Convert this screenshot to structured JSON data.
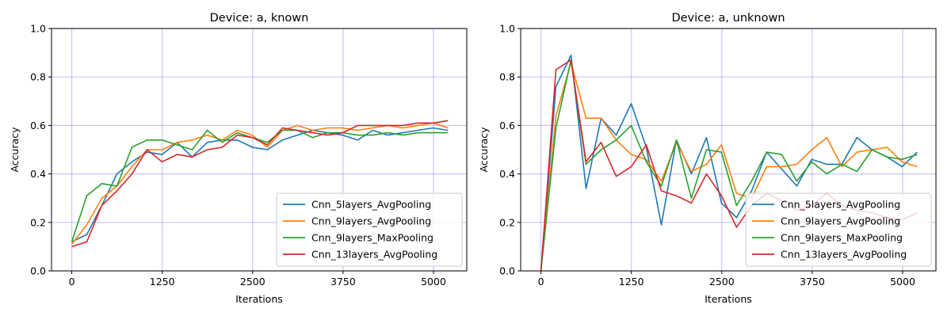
{
  "chart_data": [
    {
      "type": "line",
      "title": "Device: a, known",
      "xlabel": "Iterations",
      "ylabel": "Accuracy",
      "xlim": [
        -280,
        5460
      ],
      "ylim": [
        0.0,
        1.0
      ],
      "xticks": [
        0,
        1250,
        2500,
        3750,
        5000
      ],
      "xtick_labels": [
        "0",
        "1250",
        "2500",
        "3750",
        "5000"
      ],
      "yticks": [
        0.0,
        0.2,
        0.4,
        0.6,
        0.8,
        1.0
      ],
      "ytick_labels": [
        "0.0",
        "0.2",
        "0.4",
        "0.6",
        "0.8",
        "1.0"
      ],
      "grid": true,
      "legend": "lower right",
      "x": [
        0,
        208,
        416,
        624,
        832,
        1040,
        1248,
        1456,
        1664,
        1872,
        2080,
        2288,
        2496,
        2704,
        2912,
        3120,
        3328,
        3536,
        3744,
        3952,
        4160,
        4368,
        4576,
        4784,
        4992,
        5200
      ],
      "series": [
        {
          "name": "Cnn_5layers_AvgPooling",
          "color": "#1f77b4",
          "values": [
            0.12,
            0.15,
            0.27,
            0.4,
            0.45,
            0.49,
            0.48,
            0.53,
            0.47,
            0.53,
            0.54,
            0.54,
            0.51,
            0.5,
            0.54,
            0.56,
            0.58,
            0.57,
            0.56,
            0.54,
            0.58,
            0.56,
            0.57,
            0.58,
            0.59,
            0.58
          ]
        },
        {
          "name": "Cnn_9layers_AvgPooling",
          "color": "#ff7f0e",
          "values": [
            0.11,
            0.19,
            0.3,
            0.35,
            0.43,
            0.5,
            0.5,
            0.53,
            0.54,
            0.56,
            0.54,
            0.58,
            0.56,
            0.51,
            0.58,
            0.6,
            0.58,
            0.59,
            0.59,
            0.58,
            0.59,
            0.6,
            0.59,
            0.6,
            0.61,
            0.59
          ]
        },
        {
          "name": "Cnn_9layers_MaxPooling",
          "color": "#2ca02c",
          "values": [
            0.12,
            0.31,
            0.36,
            0.35,
            0.51,
            0.54,
            0.54,
            0.52,
            0.5,
            0.58,
            0.53,
            0.57,
            0.55,
            0.53,
            0.58,
            0.58,
            0.55,
            0.57,
            0.57,
            0.56,
            0.56,
            0.57,
            0.56,
            0.57,
            0.57,
            0.57
          ]
        },
        {
          "name": "Cnn_13layers_AvgPooling",
          "color": "#d62728",
          "values": [
            0.1,
            0.12,
            0.27,
            0.33,
            0.4,
            0.5,
            0.45,
            0.48,
            0.47,
            0.5,
            0.51,
            0.56,
            0.55,
            0.52,
            0.59,
            0.58,
            0.57,
            0.56,
            0.57,
            0.6,
            0.6,
            0.6,
            0.6,
            0.61,
            0.61,
            0.62
          ]
        }
      ]
    },
    {
      "type": "line",
      "title": "Device: a, unknown",
      "xlabel": "Iterations",
      "ylabel": "Accuracy",
      "xlim": [
        -280,
        5460
      ],
      "ylim": [
        0.0,
        1.0
      ],
      "xticks": [
        0,
        1250,
        2500,
        3750,
        5000
      ],
      "xtick_labels": [
        "0",
        "1250",
        "2500",
        "3750",
        "5000"
      ],
      "yticks": [
        0.0,
        0.2,
        0.4,
        0.6,
        0.8,
        1.0
      ],
      "ytick_labels": [
        "0.0",
        "0.2",
        "0.4",
        "0.6",
        "0.8",
        "1.0"
      ],
      "grid": true,
      "legend": "lower right",
      "x": [
        0,
        208,
        416,
        624,
        832,
        1040,
        1248,
        1456,
        1664,
        1872,
        2080,
        2288,
        2496,
        2704,
        2912,
        3120,
        3328,
        3536,
        3744,
        3952,
        4160,
        4368,
        4576,
        4784,
        4992,
        5200
      ],
      "series": [
        {
          "name": "Cnn_5layers_AvgPooling",
          "color": "#1f77b4",
          "values": [
            0.0,
            0.76,
            0.89,
            0.34,
            0.63,
            0.56,
            0.69,
            0.51,
            0.19,
            0.54,
            0.4,
            0.55,
            0.28,
            0.22,
            0.33,
            0.49,
            0.42,
            0.35,
            0.46,
            0.44,
            0.44,
            0.55,
            0.5,
            0.47,
            0.43,
            0.49
          ]
        },
        {
          "name": "Cnn_9layers_AvgPooling",
          "color": "#ff7f0e",
          "values": [
            0.0,
            0.64,
            0.86,
            0.63,
            0.63,
            0.54,
            0.48,
            0.46,
            0.37,
            0.53,
            0.41,
            0.44,
            0.52,
            0.32,
            0.3,
            0.43,
            0.43,
            0.44,
            0.5,
            0.55,
            0.43,
            0.49,
            0.5,
            0.51,
            0.45,
            0.43
          ]
        },
        {
          "name": "Cnn_9layers_MaxPooling",
          "color": "#2ca02c",
          "values": [
            0.0,
            0.59,
            0.87,
            0.44,
            0.5,
            0.54,
            0.6,
            0.45,
            0.35,
            0.54,
            0.3,
            0.5,
            0.49,
            0.27,
            0.37,
            0.49,
            0.48,
            0.37,
            0.45,
            0.4,
            0.44,
            0.41,
            0.5,
            0.47,
            0.46,
            0.48
          ]
        },
        {
          "name": "Cnn_13layers_AvgPooling",
          "color": "#d62728",
          "values": [
            0.0,
            0.83,
            0.87,
            0.45,
            0.53,
            0.39,
            0.43,
            0.52,
            0.33,
            0.31,
            0.28,
            0.4,
            0.31,
            0.18,
            0.27,
            0.32,
            0.29,
            0.25,
            0.27,
            0.32,
            0.27,
            0.25,
            0.24,
            0.22,
            0.21,
            0.24
          ]
        }
      ]
    }
  ]
}
